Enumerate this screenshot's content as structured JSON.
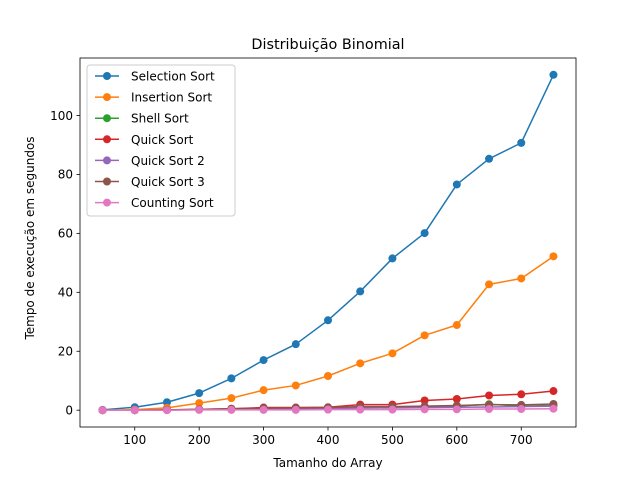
{
  "chart_data": {
    "type": "line",
    "title": "Distribuição Binomial",
    "xlabel": "Tamanho do Array",
    "ylabel": "Tempo de execução em segundos",
    "xlim": [
      15,
      785
    ],
    "ylim": [
      -5.7,
      119.5
    ],
    "xticks": [
      100,
      200,
      300,
      400,
      500,
      600,
      700
    ],
    "yticks": [
      0,
      20,
      40,
      60,
      80,
      100
    ],
    "grid": false,
    "legend_position": "top-left",
    "x": [
      50,
      100,
      150,
      200,
      250,
      300,
      350,
      400,
      450,
      500,
      550,
      600,
      650,
      700,
      750
    ],
    "series": [
      {
        "name": "Selection Sort",
        "color": "#1f77b4",
        "values": [
          0.1,
          1.0,
          2.7,
          5.8,
          10.8,
          17.0,
          22.4,
          30.5,
          40.3,
          51.5,
          60.1,
          76.6,
          85.3,
          90.7,
          113.8
        ]
      },
      {
        "name": "Insertion Sort",
        "color": "#ff7f0e",
        "values": [
          0.0,
          0.2,
          0.8,
          2.4,
          4.1,
          6.8,
          8.4,
          11.6,
          15.9,
          19.3,
          25.4,
          28.9,
          42.7,
          44.7,
          52.2
        ]
      },
      {
        "name": "Shell Sort",
        "color": "#2ca02c",
        "values": [
          0.0,
          0.0,
          0.1,
          0.2,
          0.4,
          0.5,
          0.6,
          0.7,
          0.9,
          1.0,
          1.2,
          1.4,
          2.0,
          1.4,
          1.6
        ]
      },
      {
        "name": "Quick Sort",
        "color": "#d62728",
        "values": [
          0.0,
          0.0,
          0.1,
          0.3,
          0.5,
          0.9,
          0.9,
          1.0,
          1.9,
          1.9,
          3.3,
          3.8,
          5.0,
          5.4,
          6.5
        ]
      },
      {
        "name": "Quick Sort 2",
        "color": "#9467bd",
        "values": [
          0.0,
          0.0,
          0.1,
          0.2,
          0.3,
          0.4,
          0.5,
          0.6,
          0.7,
          0.8,
          0.9,
          1.0,
          1.1,
          1.2,
          1.4
        ]
      },
      {
        "name": "Quick Sort 3",
        "color": "#8c564b",
        "values": [
          0.0,
          0.0,
          0.1,
          0.3,
          0.5,
          0.7,
          0.8,
          0.9,
          1.2,
          1.2,
          1.4,
          1.6,
          1.9,
          1.8,
          2.1
        ]
      },
      {
        "name": "Counting Sort",
        "color": "#e377c2",
        "values": [
          0.0,
          0.0,
          0.0,
          0.1,
          0.1,
          0.1,
          0.1,
          0.2,
          0.2,
          0.2,
          0.3,
          0.3,
          0.4,
          0.4,
          0.5
        ]
      }
    ]
  }
}
